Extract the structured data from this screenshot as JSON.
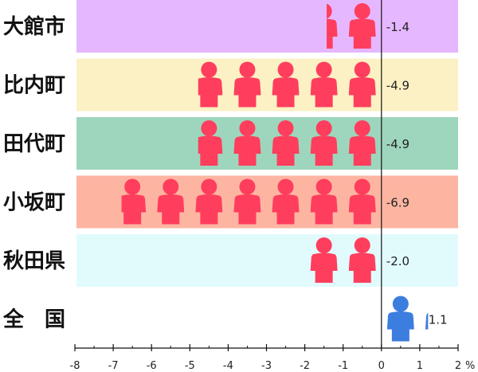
{
  "chart_data": {
    "type": "bar",
    "orientation": "horizontal",
    "title": "",
    "xlabel": "",
    "ylabel": "",
    "unit": "%",
    "xlim": [
      -8,
      2
    ],
    "x_ticks": [
      -8,
      -7,
      -6,
      -5,
      -4,
      -3,
      -2,
      -1,
      0,
      1,
      2
    ],
    "pictogram_unit": 1,
    "grid": false,
    "categories": [
      "大館市",
      "比内町",
      "田代町",
      "小坂町",
      "秋田県",
      "全　国"
    ],
    "values": [
      -1.4,
      -4.9,
      -4.9,
      -6.9,
      -2.0,
      1.1
    ],
    "value_labels": [
      "-1.4",
      "-4.9",
      "-4.9",
      "-6.9",
      "-2.0",
      "1.1"
    ],
    "band_colors": [
      "#e5b7ff",
      "#fcf1c4",
      "#9ed6bd",
      "#fdb5a2",
      "#e1fbfd",
      "#ffffff"
    ],
    "negative_icon_color": "#ff3e5e",
    "positive_icon_color": "#3c7de0",
    "icon": "person-icon"
  }
}
